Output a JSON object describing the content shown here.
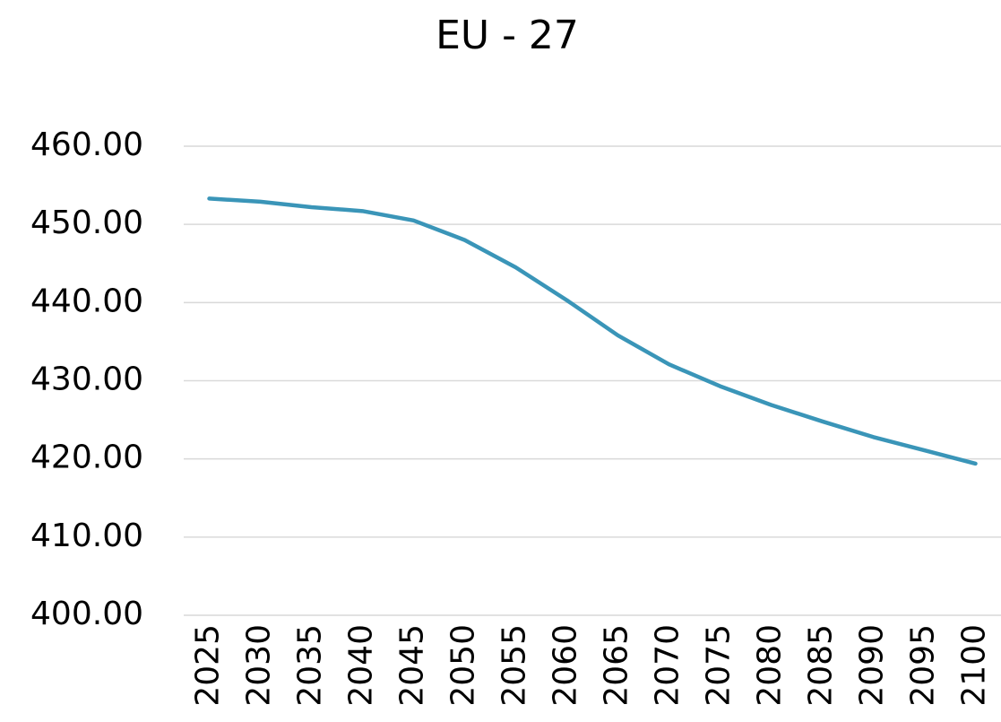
{
  "chart_data": {
    "type": "line",
    "title": "EU - 27",
    "categories": [
      "2025",
      "2030",
      "2035",
      "2040",
      "2045",
      "2050",
      "2055",
      "2060",
      "2065",
      "2070",
      "2075",
      "2080",
      "2085",
      "2090",
      "2095",
      "2100"
    ],
    "series": [
      {
        "name": "EU - 27",
        "color": "#3a95b8",
        "values": [
          453.3,
          452.9,
          452.2,
          451.7,
          450.5,
          448.0,
          444.5,
          440.3,
          435.8,
          432.1,
          429.3,
          426.9,
          424.8,
          422.8,
          421.1,
          419.4
        ]
      }
    ],
    "ylim": [
      400,
      460
    ],
    "yticks": [
      {
        "value": 400,
        "label": "400.00"
      },
      {
        "value": 410,
        "label": "410.00"
      },
      {
        "value": 420,
        "label": "420.00"
      },
      {
        "value": 430,
        "label": "430.00"
      },
      {
        "value": 440,
        "label": "440.00"
      },
      {
        "value": 450,
        "label": "450.00"
      },
      {
        "value": 460,
        "label": "460.00"
      }
    ],
    "grid": true
  }
}
